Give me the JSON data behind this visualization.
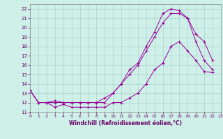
{
  "xlabel": "Windchill (Refroidissement éolien,°C)",
  "background_color": "#cff0e8",
  "grid_color": "#aad4cc",
  "line_color": "#990099",
  "xlim": [
    0,
    23
  ],
  "ylim": [
    11,
    22.5
  ],
  "xticks": [
    0,
    1,
    2,
    3,
    4,
    5,
    6,
    7,
    8,
    9,
    10,
    11,
    12,
    13,
    14,
    15,
    16,
    17,
    18,
    19,
    20,
    21,
    22,
    23
  ],
  "yticks": [
    11,
    12,
    13,
    14,
    15,
    16,
    17,
    18,
    19,
    20,
    21,
    22
  ],
  "series1_x": [
    0,
    1,
    2,
    3,
    4,
    5,
    6,
    7,
    8,
    9,
    10,
    11,
    12,
    13,
    14,
    15,
    16,
    17,
    18,
    19,
    20,
    21,
    22
  ],
  "series1_y": [
    13.3,
    12.0,
    12.0,
    11.5,
    11.8,
    11.5,
    11.5,
    11.5,
    11.5,
    11.5,
    12.0,
    12.0,
    12.5,
    13.0,
    14.0,
    15.5,
    16.2,
    18.0,
    18.5,
    17.5,
    16.5,
    15.3,
    15.2
  ],
  "series2_x": [
    0,
    1,
    2,
    3,
    4,
    5,
    6,
    7,
    8,
    9,
    10,
    11,
    12,
    13,
    14,
    15,
    16,
    17,
    18,
    19,
    20,
    21,
    22
  ],
  "series2_y": [
    13.3,
    12.0,
    12.0,
    12.0,
    12.0,
    12.0,
    12.0,
    12.0,
    12.0,
    12.0,
    13.0,
    14.0,
    15.5,
    16.2,
    18.0,
    19.5,
    21.5,
    22.0,
    21.8,
    21.0,
    19.3,
    18.5,
    16.5
  ],
  "series3_x": [
    0,
    1,
    2,
    3,
    4,
    5,
    6,
    7,
    8,
    9,
    10,
    11,
    12,
    13,
    14,
    15,
    16,
    17,
    18,
    19,
    20,
    21,
    22
  ],
  "series3_y": [
    13.3,
    12.0,
    12.0,
    12.2,
    12.0,
    12.0,
    12.0,
    12.0,
    12.0,
    12.5,
    13.0,
    14.0,
    15.0,
    16.0,
    17.5,
    19.0,
    20.5,
    21.5,
    21.5,
    21.0,
    18.5,
    16.5,
    15.5
  ]
}
